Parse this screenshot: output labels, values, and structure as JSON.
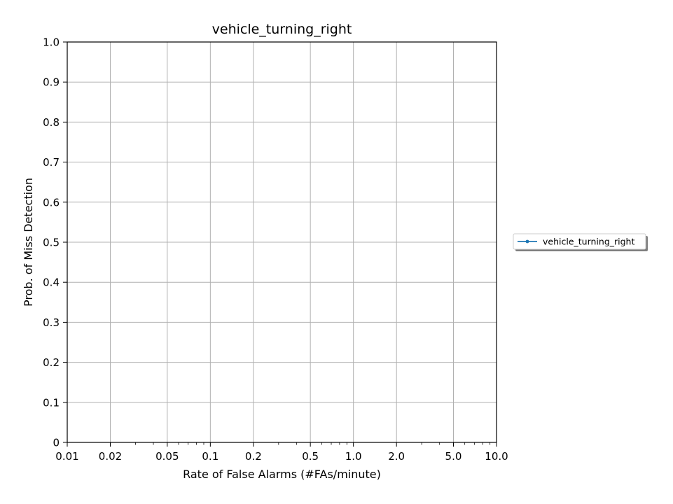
{
  "chart_data": {
    "type": "line",
    "title": "vehicle_turning_right",
    "xlabel": "Rate of False Alarms (#FAs/minute)",
    "ylabel": "Prob. of Miss Detection",
    "xscale": "log",
    "xlim": [
      0.01,
      10.0
    ],
    "ylim": [
      0,
      1.0
    ],
    "xticks": [
      0.01,
      0.02,
      0.05,
      0.1,
      0.2,
      0.5,
      1.0,
      2.0,
      5.0,
      10.0
    ],
    "xtick_labels": [
      "0.01",
      "0.02",
      "0.05",
      "0.1",
      "0.2",
      "0.5",
      "1.0",
      "2.0",
      "5.0",
      "10.0"
    ],
    "yticks": [
      0,
      0.1,
      0.2,
      0.3,
      0.4,
      0.5,
      0.6,
      0.7,
      0.8,
      0.9,
      1.0
    ],
    "ytick_labels": [
      "0",
      "0.1",
      "0.2",
      "0.3",
      "0.4",
      "0.5",
      "0.6",
      "0.7",
      "0.8",
      "0.9",
      "1.0"
    ],
    "grid": true,
    "legend_position": "outside-right",
    "series": [
      {
        "name": "vehicle_turning_right",
        "color": "#1f77b4",
        "marker": "dot",
        "x": [],
        "y": []
      }
    ]
  }
}
